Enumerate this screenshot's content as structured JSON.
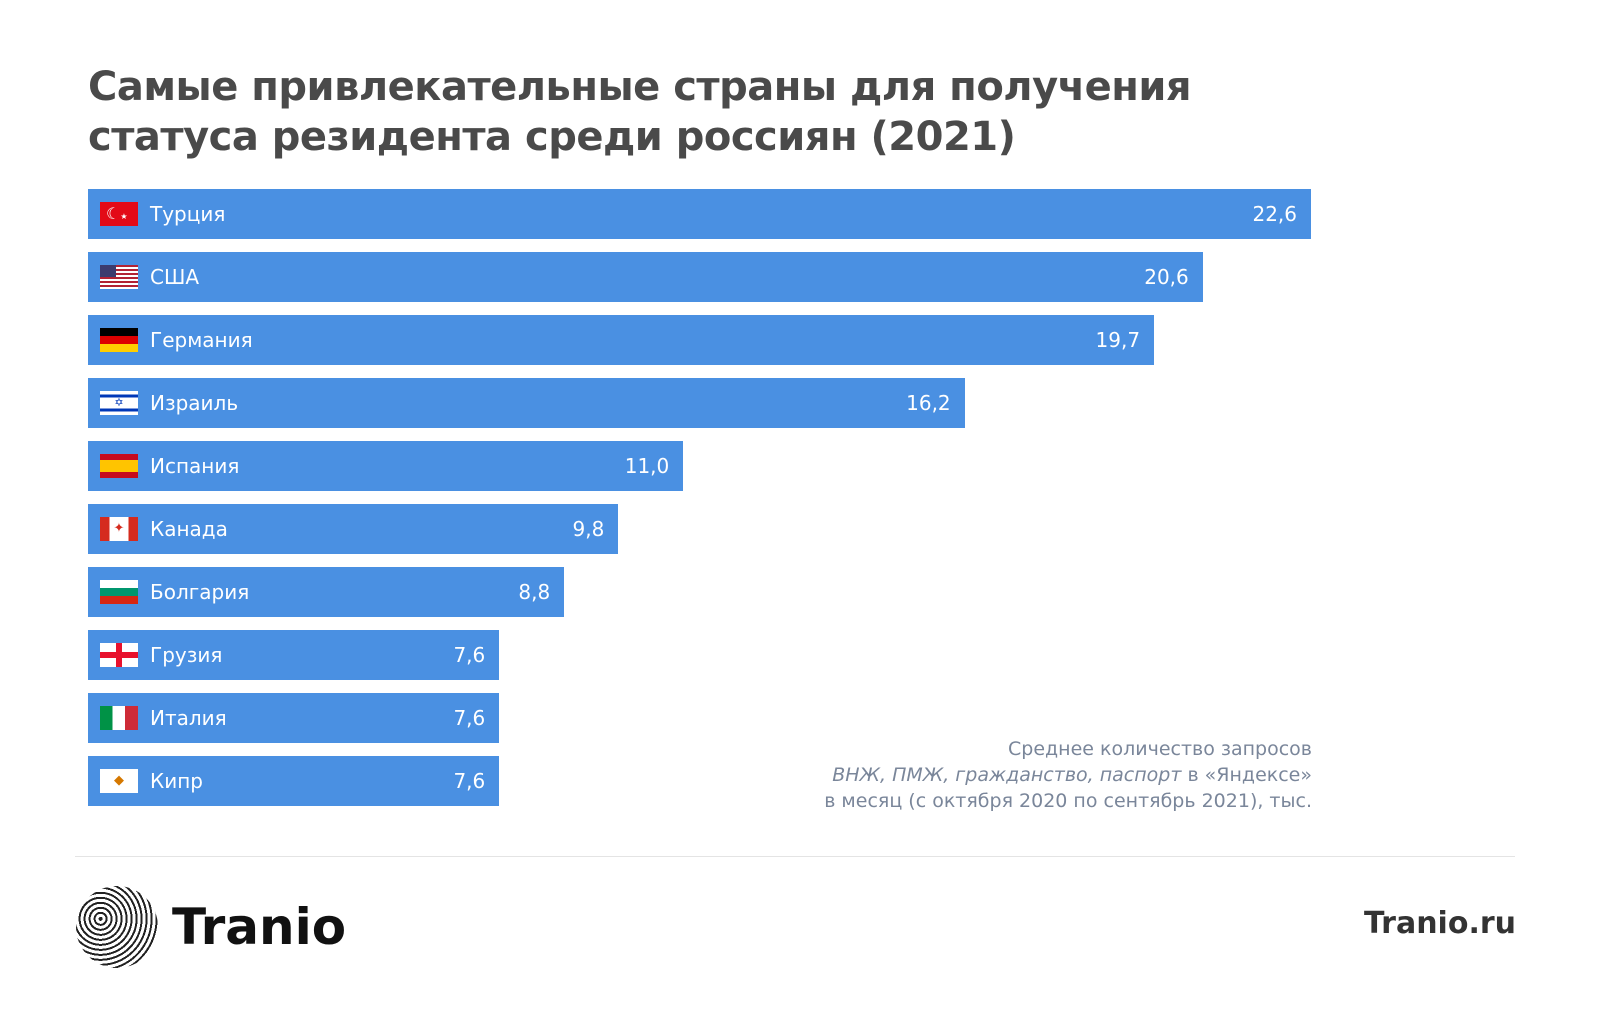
{
  "chart_data": {
    "type": "bar",
    "orientation": "horizontal",
    "title": "Самые привлекательные страны для получения статуса резидента среди россиян (2021)",
    "title_lines": [
      "Самые привлекательные страны для получения",
      "статуса резидента среди россиян (2021)"
    ],
    "categories": [
      "Турция",
      "США",
      "Германия",
      "Израиль",
      "Испания",
      "Канада",
      "Болгария",
      "Грузия",
      "Италия",
      "Кипр"
    ],
    "values": [
      22.6,
      20.6,
      19.7,
      16.2,
      11.0,
      9.8,
      8.8,
      7.6,
      7.6,
      7.6
    ],
    "value_labels": [
      "22,6",
      "20,6",
      "19,7",
      "16,2",
      "11,0",
      "9,8",
      "8,8",
      "7,6",
      "7,6",
      "7,6"
    ],
    "flags": [
      "turkey-flag",
      "usa-flag",
      "germany-flag",
      "israel-flag",
      "spain-flag",
      "canada-flag",
      "bulgaria-flag",
      "georgia-flag",
      "italy-flag",
      "cyprus-flag"
    ],
    "bar_color": "#4a90e2",
    "xlim": [
      0,
      22.6
    ],
    "grid": false,
    "note": {
      "line1": "Среднее количество запросов",
      "line2_italic": "ВНЖ, ПМЖ, гражданство, паспорт",
      "line2_rest": " в «Яндексе»",
      "line3": "в месяц (с октября 2020 по сентябрь 2021), тыс."
    }
  },
  "footer": {
    "brand": "Tranio",
    "site": "Tranio.ru"
  }
}
